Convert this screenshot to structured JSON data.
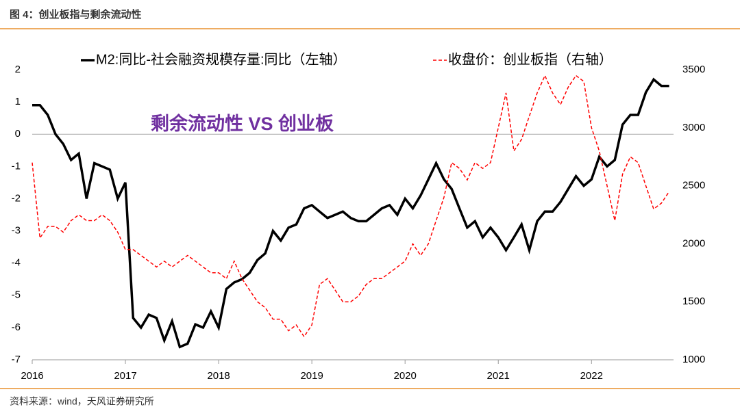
{
  "header": {
    "title": "图 4：创业板指与剩余流动性"
  },
  "chart_data": {
    "type": "line",
    "annotation": "剩余流动性 VS 创业板",
    "x": [
      2016,
      2016.083,
      2016.167,
      2016.25,
      2016.333,
      2016.417,
      2016.5,
      2016.583,
      2016.667,
      2016.75,
      2016.833,
      2016.917,
      2017,
      2017.083,
      2017.167,
      2017.25,
      2017.333,
      2017.417,
      2017.5,
      2017.583,
      2017.667,
      2017.75,
      2017.833,
      2017.917,
      2018,
      2018.083,
      2018.167,
      2018.25,
      2018.333,
      2018.417,
      2018.5,
      2018.583,
      2018.667,
      2018.75,
      2018.833,
      2018.917,
      2019,
      2019.083,
      2019.167,
      2019.25,
      2019.333,
      2019.417,
      2019.5,
      2019.583,
      2019.667,
      2019.75,
      2019.833,
      2019.917,
      2020,
      2020.083,
      2020.167,
      2020.25,
      2020.333,
      2020.417,
      2020.5,
      2020.583,
      2020.667,
      2020.75,
      2020.833,
      2020.917,
      2021,
      2021.083,
      2021.167,
      2021.25,
      2021.333,
      2021.417,
      2021.5,
      2021.583,
      2021.667,
      2021.75,
      2021.833,
      2021.917,
      2022,
      2022.083,
      2022.167,
      2022.25,
      2022.333,
      2022.417,
      2022.5,
      2022.583,
      2022.667,
      2022.75,
      2022.833
    ],
    "series": [
      {
        "name": "M2:同比-社会融资规模存量:同比（左轴）",
        "color": "#000000",
        "values": [
          0.9,
          0.9,
          0.6,
          0.0,
          -0.3,
          -0.8,
          -0.6,
          -2.0,
          -0.9,
          -1.0,
          -1.1,
          -2.0,
          -1.5,
          -5.7,
          -6.0,
          -5.6,
          -5.7,
          -6.4,
          -5.8,
          -6.6,
          -6.5,
          -5.9,
          -6.0,
          -5.5,
          -6.0,
          -4.8,
          -4.6,
          -4.5,
          -4.3,
          -3.9,
          -3.7,
          -3.0,
          -3.3,
          -2.9,
          -2.8,
          -2.3,
          -2.2,
          -2.4,
          -2.6,
          -2.5,
          -2.4,
          -2.6,
          -2.7,
          -2.7,
          -2.5,
          -2.3,
          -2.2,
          -2.5,
          -2.0,
          -2.3,
          -1.9,
          -1.4,
          -0.9,
          -1.4,
          -1.7,
          -2.3,
          -2.9,
          -2.7,
          -3.2,
          -2.9,
          -3.2,
          -3.6,
          -3.2,
          -2.8,
          -3.6,
          -2.7,
          -2.4,
          -2.4,
          -2.1,
          -1.7,
          -1.3,
          -1.6,
          -1.4,
          -0.7,
          -1.0,
          -0.8,
          0.3,
          0.6,
          0.6,
          1.3,
          1.7,
          1.5,
          1.5
        ]
      },
      {
        "name": "收盘价：创业板指（右轴）",
        "color": "#ff0000",
        "dashed": true,
        "axis": "y2",
        "values": [
          2700,
          2050,
          2150,
          2150,
          2100,
          2200,
          2250,
          2200,
          2200,
          2250,
          2200,
          2100,
          1950,
          1950,
          1900,
          1850,
          1800,
          1850,
          1800,
          1850,
          1900,
          1850,
          1800,
          1750,
          1750,
          1700,
          1850,
          1700,
          1600,
          1500,
          1450,
          1350,
          1350,
          1250,
          1300,
          1200,
          1300,
          1650,
          1700,
          1600,
          1500,
          1500,
          1550,
          1650,
          1700,
          1700,
          1750,
          1800,
          1850,
          2000,
          1900,
          2000,
          2200,
          2400,
          2700,
          2650,
          2550,
          2700,
          2650,
          2700,
          3000,
          3300,
          2800,
          2900,
          3100,
          3300,
          3450,
          3300,
          3200,
          3350,
          3450,
          3400,
          3000,
          2800,
          2500,
          2200,
          2600,
          2750,
          2700,
          2500,
          2300,
          2350,
          2450
        ]
      }
    ],
    "xlim": [
      2016,
      2022.88
    ],
    "xticks": [
      2016,
      2017,
      2018,
      2019,
      2020,
      2021,
      2022
    ],
    "ylim": [
      -7,
      2
    ],
    "yticks": [
      -7,
      -6,
      -5,
      -4,
      -3,
      -2,
      -1,
      0,
      1,
      2
    ],
    "y2lim": [
      1000,
      3500
    ],
    "y2ticks": [
      1000,
      1500,
      2000,
      2500,
      3000,
      3500
    ],
    "zero_line": true
  },
  "footer": {
    "source": "资料来源：wind，天风证券研究所"
  }
}
